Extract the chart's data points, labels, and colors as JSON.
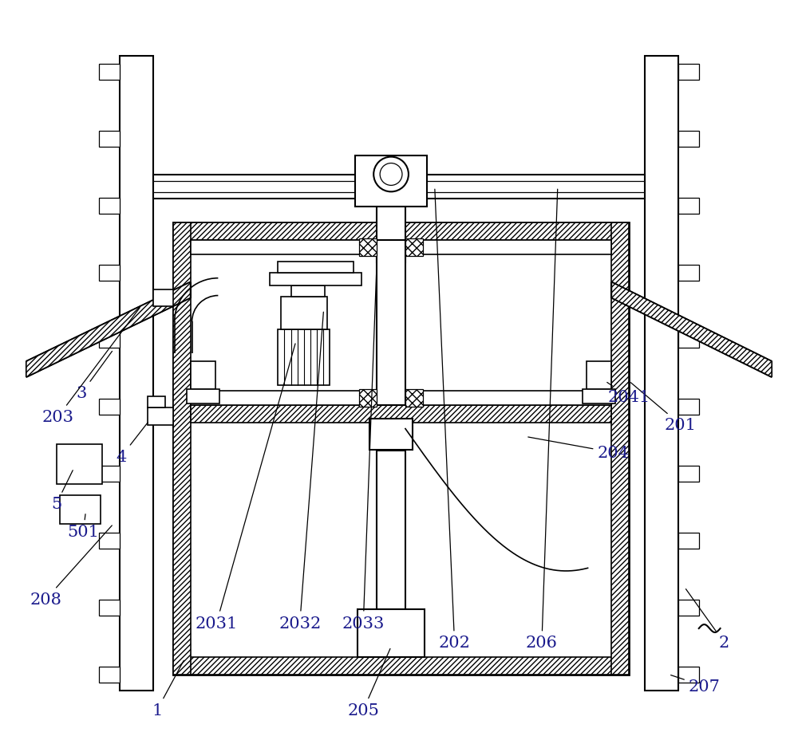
{
  "bg_color": "#ffffff",
  "line_color": "#000000",
  "label_color": "#1a1a8c",
  "label_fontsize": 15,
  "fig_width": 10.0,
  "fig_height": 9.29
}
